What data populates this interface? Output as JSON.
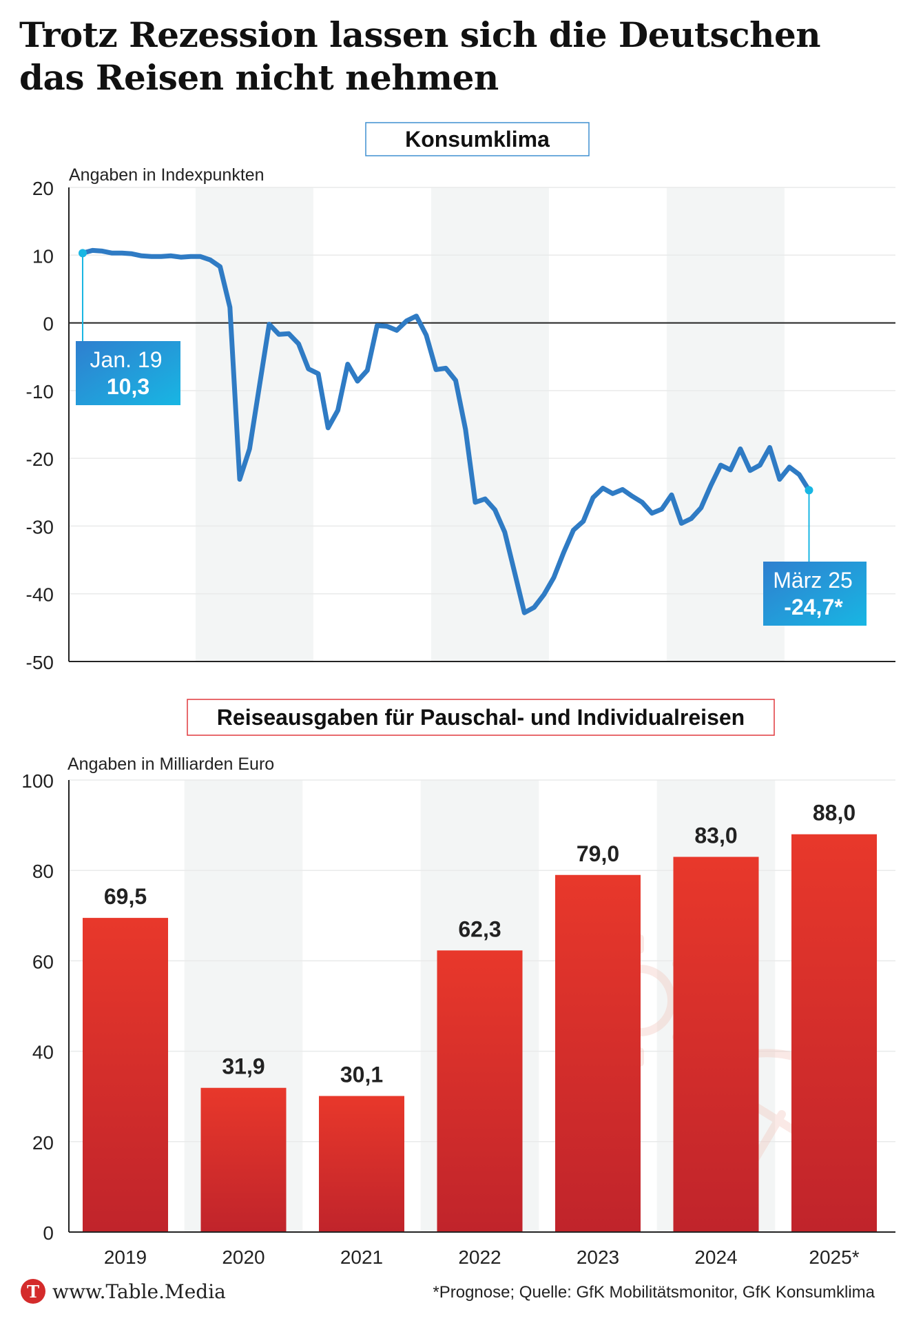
{
  "headline": {
    "line1": "Trotz Rezession lassen sich die Deutschen",
    "line2": "das Reisen nicht nehmen"
  },
  "footer": {
    "brand": "www.Table.Media",
    "brand_logo_letter": "T",
    "note": "*Prognose; Quelle: GfK Mobilitätsmonitor, GfK Konsumklima"
  },
  "colors": {
    "line": "#2f7bc4",
    "bar_top": "#e8382b",
    "bar_bottom": "#c0242b",
    "label_box": "#1aa3e0",
    "title_box_blue": "#3f8fd0",
    "title_box_red": "#e0383d",
    "band": "#f3f5f5"
  },
  "chart_data": [
    {
      "type": "line",
      "title": "Konsumklima",
      "ylabel": "Angaben in Indexpunkten",
      "ylim": [
        -50,
        20
      ],
      "yticks": [
        "20",
        "10",
        "0",
        "-10",
        "-20",
        "-30",
        "-40",
        "-50"
      ],
      "x_start": "Jan. 2019",
      "x_end": "März 2025",
      "x_frequency": "monthly",
      "values": [
        10.3,
        10.7,
        10.6,
        10.3,
        10.3,
        10.2,
        9.9,
        9.8,
        9.8,
        9.9,
        9.7,
        9.8,
        9.8,
        9.3,
        8.3,
        2.3,
        -23.1,
        -18.6,
        -9.4,
        -0.2,
        -1.7,
        -1.6,
        -3.1,
        -6.8,
        -7.5,
        -15.5,
        -12.9,
        -6.1,
        -8.6,
        -7.0,
        -0.4,
        -0.5,
        -1.1,
        0.3,
        1.0,
        -1.8,
        -6.9,
        -6.7,
        -8.5,
        -15.7,
        -26.5,
        -26.0,
        -27.6,
        -30.9,
        -36.8,
        -42.8,
        -42.0,
        -40.1,
        -37.6,
        -33.9,
        -30.6,
        -29.3,
        -25.8,
        -24.4,
        -25.2,
        -24.6,
        -25.6,
        -26.5,
        -28.1,
        -27.5,
        -25.4,
        -29.6,
        -28.9,
        -27.3,
        -24.0,
        -21.0,
        -21.7,
        -18.6,
        -21.8,
        -21.0,
        -18.4,
        -23.1,
        -21.3,
        -22.4,
        -24.7
      ],
      "annotations": [
        {
          "label": "Jan. 19",
          "value": "10,3"
        },
        {
          "label": "März 25",
          "value": "-24,7*"
        }
      ],
      "grid": true
    },
    {
      "type": "bar",
      "title": "Reiseausgaben für Pauschal- und Individualreisen",
      "ylabel": "Angaben in Milliarden Euro",
      "ylim": [
        0,
        100
      ],
      "yticks": [
        "100",
        "80",
        "60",
        "40",
        "20",
        "0"
      ],
      "categories": [
        "2019",
        "2020",
        "2021",
        "2022",
        "2023",
        "2024",
        "2025*"
      ],
      "values": [
        69.5,
        31.9,
        30.1,
        62.3,
        79.0,
        83.0,
        88.0
      ],
      "value_labels": [
        "69,5",
        "31,9",
        "30,1",
        "62,3",
        "79,0",
        "83,0",
        "88,0"
      ],
      "grid": true
    }
  ]
}
